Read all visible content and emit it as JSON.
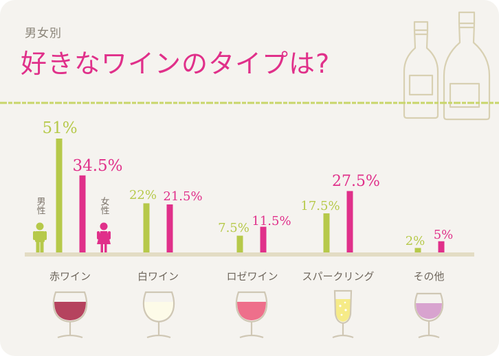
{
  "subtitle": "男女別",
  "title": "好きなワインのタイプは?",
  "legend": {
    "male": "男性",
    "female": "女性"
  },
  "colors": {
    "male": "#b6c94a",
    "female": "#e0308a",
    "title": "#e0308a",
    "axis": "#d7d0b8"
  },
  "chart_data": {
    "type": "bar",
    "title": "好きなワインのタイプは?",
    "subtitle": "男女別",
    "categories": [
      "赤ワイン",
      "白ワイン",
      "ロゼワイン",
      "スパークリング",
      "その他"
    ],
    "series": [
      {
        "name": "男性",
        "values": [
          51,
          22,
          7.5,
          17.5,
          2
        ],
        "labels": [
          "51%",
          "22%",
          "7.5%",
          "17.5%",
          "2%"
        ]
      },
      {
        "name": "女性",
        "values": [
          34.5,
          21.5,
          11.5,
          27.5,
          5
        ],
        "labels": [
          "34.5%",
          "21.5%",
          "11.5%",
          "27.5%",
          "5%"
        ]
      }
    ],
    "unit": "%",
    "ylim": [
      0,
      51
    ],
    "grid": false,
    "legend_position": "left"
  },
  "glasses": [
    {
      "category": "赤ワイン",
      "wine_color": "#b5435e",
      "icon": "red-wine-glass-icon"
    },
    {
      "category": "白ワイン",
      "wine_color": "#fdfbe8",
      "icon": "white-wine-glass-icon"
    },
    {
      "category": "ロゼワイン",
      "wine_color": "#ee6f8b",
      "icon": "rose-wine-glass-icon"
    },
    {
      "category": "スパークリング",
      "wine_color": "#f6eb87",
      "icon": "sparkling-wine-flute-icon"
    },
    {
      "category": "その他",
      "wine_color": "#d8a3cf",
      "icon": "other-wine-glass-icon"
    }
  ]
}
